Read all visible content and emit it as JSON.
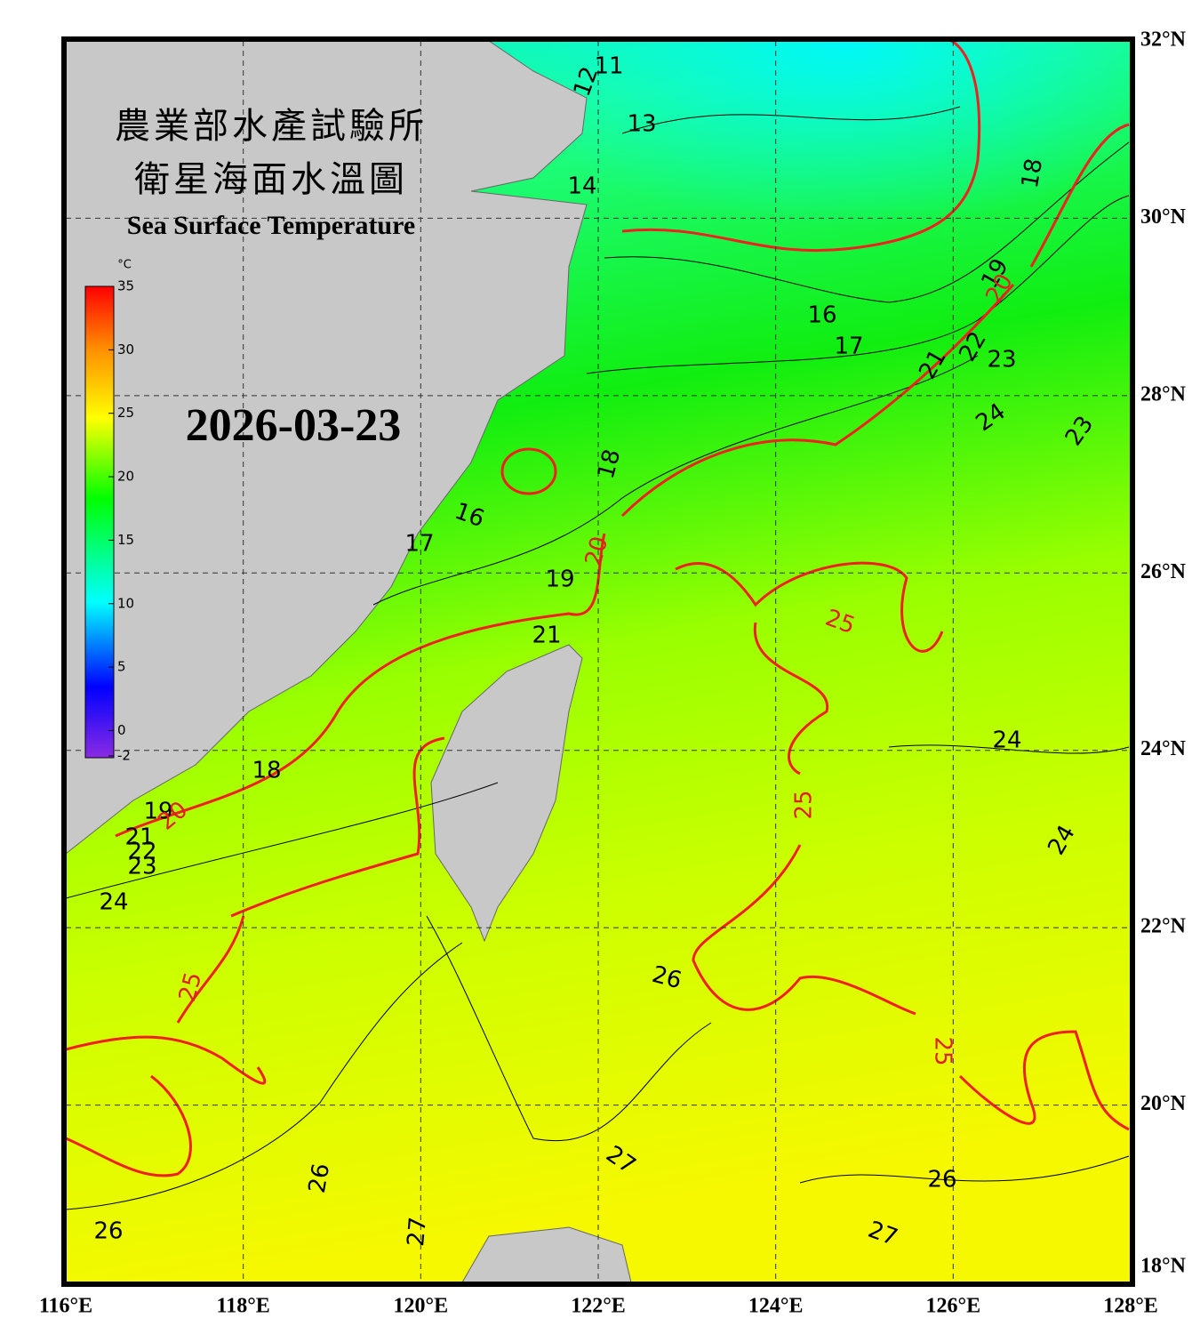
{
  "title_zh_1": "農業部水產試驗所",
  "title_zh_2": "衛星海面水溫圖",
  "title_en": "Sea Surface Temperature",
  "date": "2026-03-23",
  "colorbar": {
    "unit": "°C",
    "range": [
      -2,
      35
    ],
    "ticks": [
      -2,
      0,
      5,
      10,
      15,
      20,
      25,
      30,
      35
    ]
  },
  "lon": {
    "range": [
      116,
      128
    ],
    "ticks": [
      {
        "value": 116,
        "label": "116°E"
      },
      {
        "value": 118,
        "label": "118°E"
      },
      {
        "value": 120,
        "label": "120°E"
      },
      {
        "value": 122,
        "label": "122°E"
      },
      {
        "value": 124,
        "label": "124°E"
      },
      {
        "value": 126,
        "label": "126°E"
      },
      {
        "value": 128,
        "label": "128°E"
      }
    ]
  },
  "lat": {
    "range": [
      18,
      32
    ],
    "ticks": [
      {
        "value": 18,
        "label": "18°N"
      },
      {
        "value": 20,
        "label": "20°N"
      },
      {
        "value": 22,
        "label": "22°N"
      },
      {
        "value": 24,
        "label": "24°N"
      },
      {
        "value": 26,
        "label": "26°N"
      },
      {
        "value": 28,
        "label": "28°N"
      },
      {
        "value": 30,
        "label": "30°N"
      },
      {
        "value": 32,
        "label": "32°N"
      }
    ]
  },
  "contour_labels": [
    11,
    12,
    13,
    14,
    16,
    17,
    18,
    19,
    20,
    21,
    22,
    23,
    24,
    23,
    18,
    16,
    17,
    20,
    19,
    21,
    25,
    24,
    18,
    19,
    20,
    21,
    22,
    23,
    24,
    25,
    26,
    24,
    25,
    25,
    27,
    26,
    26,
    27,
    27,
    26
  ]
}
